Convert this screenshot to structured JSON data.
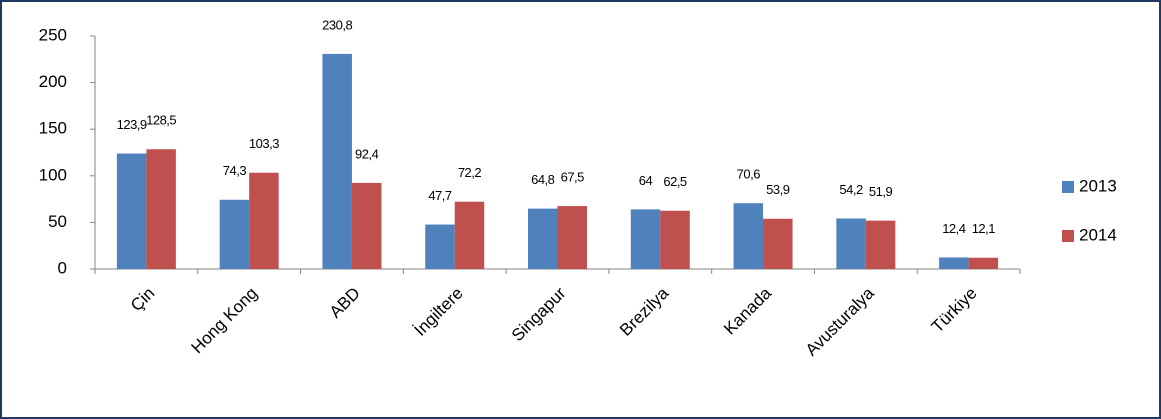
{
  "chart_data": {
    "type": "bar",
    "categories": [
      "Çin",
      "Hong Kong",
      "ABD",
      "İngiltere",
      "Singapur",
      "Brezilya",
      "Kanada",
      "Avusturalya",
      "Türkiye"
    ],
    "series": [
      {
        "name": "2013",
        "color": "#4f81bd",
        "values": [
          123.9,
          74.3,
          230.8,
          47.7,
          64.8,
          64,
          70.6,
          54.2,
          12.4
        ],
        "value_labels": [
          "123,9",
          "74,3",
          "230,8",
          "47,7",
          "64,8",
          "64",
          "70,6",
          "54,2",
          "12,4"
        ]
      },
      {
        "name": "2014",
        "color": "#c0504d",
        "values": [
          128.5,
          103.3,
          92.4,
          72.2,
          67.5,
          62.5,
          53.9,
          51.9,
          12.1
        ],
        "value_labels": [
          "128,5",
          "103,3",
          "92,4",
          "72,2",
          "67,5",
          "62,5",
          "53,9",
          "51,9",
          "12,1"
        ]
      }
    ],
    "ylim": [
      0,
      250
    ],
    "yticks": [
      0,
      50,
      100,
      150,
      200,
      250
    ],
    "legend": "right"
  }
}
